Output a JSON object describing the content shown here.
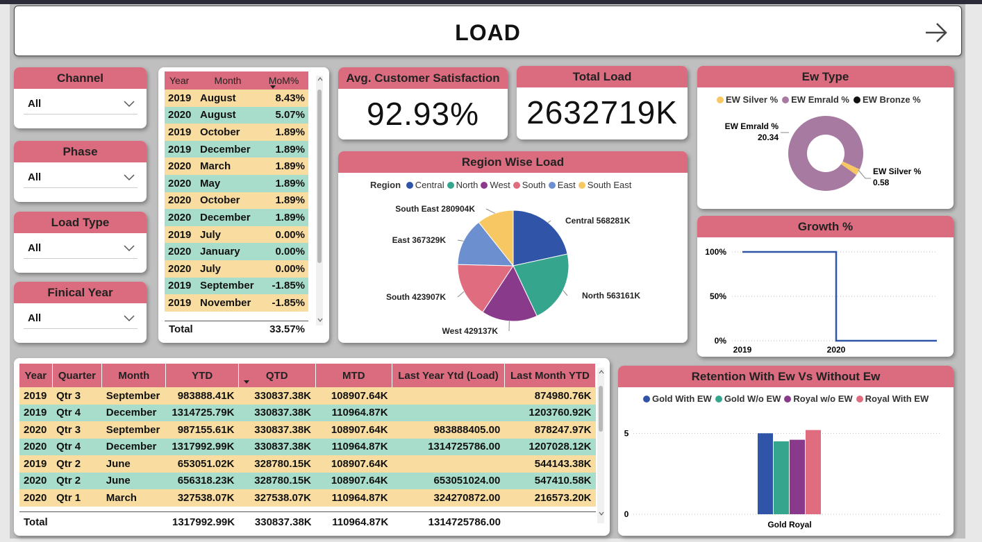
{
  "header": {
    "title": "LOAD",
    "nav_icon": "arrow-right-icon"
  },
  "slicers": [
    {
      "label": "Channel",
      "value": "All"
    },
    {
      "label": "Phase",
      "value": "All"
    },
    {
      "label": "Load Type",
      "value": "All"
    },
    {
      "label": "Finical Year",
      "value": "All"
    }
  ],
  "mom_table": {
    "columns": [
      "Year",
      "Month",
      "MoM%"
    ],
    "rows": [
      [
        "2019",
        "August",
        "8.43%"
      ],
      [
        "2020",
        "August",
        "5.07%"
      ],
      [
        "2019",
        "October",
        "1.89%"
      ],
      [
        "2019",
        "December",
        "1.89%"
      ],
      [
        "2020",
        "March",
        "1.89%"
      ],
      [
        "2020",
        "May",
        "1.89%"
      ],
      [
        "2020",
        "October",
        "1.89%"
      ],
      [
        "2020",
        "December",
        "1.89%"
      ],
      [
        "2019",
        "July",
        "0.00%"
      ],
      [
        "2020",
        "January",
        "0.00%"
      ],
      [
        "2020",
        "July",
        "0.00%"
      ],
      [
        "2019",
        "September",
        "-1.85%"
      ],
      [
        "2019",
        "November",
        "-1.85%"
      ]
    ],
    "total_label": "Total",
    "total_value": "33.57%"
  },
  "kpis": {
    "satisfaction": {
      "label": "Avg. Customer Satisfaction",
      "value": "92.93%"
    },
    "total_load": {
      "label": "Total Load",
      "value": "2632719K"
    }
  },
  "region": {
    "title": "Region Wise Load",
    "legend_title": "Region",
    "chart_data": {
      "type": "pie",
      "categories": [
        "Central",
        "North",
        "West",
        "South",
        "East",
        "South East"
      ],
      "values": [
        568281,
        563161,
        429137,
        423907,
        367329,
        280904
      ],
      "labels": [
        "Central 568281K",
        "North 563161K",
        "West 429137K",
        "South 423907K",
        "East 367329K",
        "South East 280904K"
      ],
      "colors": [
        "#2f54a8",
        "#35a58e",
        "#8a3a8a",
        "#e06c80",
        "#6b8fcf",
        "#f6c762"
      ]
    }
  },
  "ewtype": {
    "title": "Ew Type",
    "chart_data": {
      "type": "pie",
      "categories": [
        "EW Silver %",
        "EW Emrald %",
        "EW Bronze %"
      ],
      "values": [
        0.58,
        20.34,
        0
      ],
      "colors": [
        "#f6c762",
        "#a77aa1",
        "#111111"
      ],
      "labels": {
        "emrald_name": "EW Emrald %",
        "emrald_value": "20.34",
        "silver_name": "EW Silver %",
        "silver_value": "0.58"
      }
    }
  },
  "growth": {
    "title": "Growth %",
    "chart_data": {
      "type": "line",
      "x": [
        "2019",
        "2020"
      ],
      "yticks": [
        "100%",
        "50%",
        "0%"
      ],
      "series": [
        {
          "values": [
            100,
            0
          ]
        }
      ],
      "ylim": [
        0,
        100
      ],
      "color": "#2f54a8"
    }
  },
  "big_table": {
    "columns": [
      "Year",
      "Quarter",
      "Month",
      "YTD",
      "QTD",
      "MTD",
      "Last Year Ytd (Load)",
      "Last Month YTD"
    ],
    "rows": [
      [
        "2019",
        "Qtr 3",
        "September",
        "983888.41K",
        "330837.38K",
        "108907.64K",
        "",
        "874980.76K"
      ],
      [
        "2019",
        "Qtr 4",
        "December",
        "1314725.79K",
        "330837.38K",
        "110964.87K",
        "",
        "1203760.92K"
      ],
      [
        "2020",
        "Qtr 3",
        "September",
        "987155.61K",
        "330837.38K",
        "108907.64K",
        "983888405.00",
        "878247.97K"
      ],
      [
        "2020",
        "Qtr 4",
        "December",
        "1317992.99K",
        "330837.38K",
        "110964.87K",
        "1314725786.00",
        "1207028.12K"
      ],
      [
        "2019",
        "Qtr 2",
        "June",
        "653051.02K",
        "328780.15K",
        "108907.64K",
        "",
        "544143.38K"
      ],
      [
        "2020",
        "Qtr 2",
        "June",
        "656318.23K",
        "328780.15K",
        "108907.64K",
        "653051024.00",
        "547410.58K"
      ],
      [
        "2020",
        "Qtr 1",
        "March",
        "327538.07K",
        "327538.07K",
        "110964.87K",
        "324270872.00",
        "216573.20K"
      ]
    ],
    "total": [
      "Total",
      "",
      "",
      "1317992.99K",
      "330837.38K",
      "110964.87K",
      "1314725786.00",
      ""
    ]
  },
  "retention": {
    "title": "Retention With Ew Vs Without Ew",
    "chart_data": {
      "type": "bar",
      "categories": [
        "Gold Royal"
      ],
      "series": [
        {
          "name": "Gold With EW",
          "values": [
            5.0
          ],
          "color": "#2f54a8"
        },
        {
          "name": "Gold W/o EW",
          "values": [
            4.5
          ],
          "color": "#35a58e"
        },
        {
          "name": "Royal w/o EW",
          "values": [
            4.6
          ],
          "color": "#8a3a8a"
        },
        {
          "name": "Royal With EW",
          "values": [
            5.2
          ],
          "color": "#e06c80"
        }
      ],
      "yticks": [
        "5",
        "0"
      ],
      "ylim": [
        0,
        6
      ]
    }
  }
}
